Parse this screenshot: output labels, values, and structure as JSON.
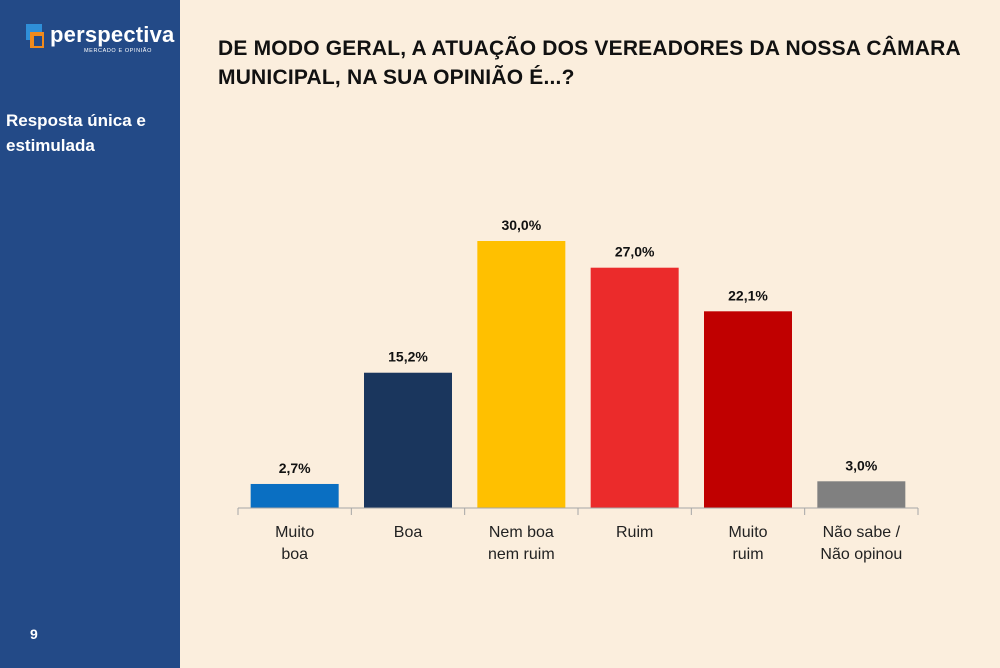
{
  "brand": {
    "name": "perspectiva",
    "tagline": "MERCADO E OPINIÃO"
  },
  "sidebar": {
    "note": "Resposta única e estimulada",
    "page_number": "9"
  },
  "colors": {
    "sidebar": "#234a87",
    "background": "#fbeedd",
    "muito_boa": "#0a6fc2",
    "boa": "#1a365d",
    "nem_boa_nem_ruim": "#ffc000",
    "ruim": "#eb2b2b",
    "muito_ruim": "#c00000",
    "nao_sabe": "#808080"
  },
  "chart_data": {
    "type": "bar",
    "title": "DE MODO GERAL, A ATUAÇÃO DOS VEREADORES DA NOSSA CÂMARA MUNICIPAL, NA SUA OPINIÃO É...?",
    "categories": [
      [
        "Muito",
        "boa"
      ],
      [
        "Boa"
      ],
      [
        "Nem boa",
        "nem ruim"
      ],
      [
        "Ruim"
      ],
      [
        "Muito",
        "ruim"
      ],
      [
        "Não sabe /",
        "Não opinou"
      ]
    ],
    "values": [
      2.7,
      15.2,
      30.0,
      27.0,
      22.1,
      3.0
    ],
    "value_labels": [
      "2,7%",
      "15,2%",
      "30,0%",
      "27,0%",
      "22,1%",
      "3,0%"
    ],
    "bar_colors": [
      "#0a6fc2",
      "#1a365d",
      "#ffc000",
      "#eb2b2b",
      "#c00000",
      "#808080"
    ],
    "ylim": [
      0,
      30
    ],
    "xlabel": "",
    "ylabel": "",
    "grid": false
  }
}
